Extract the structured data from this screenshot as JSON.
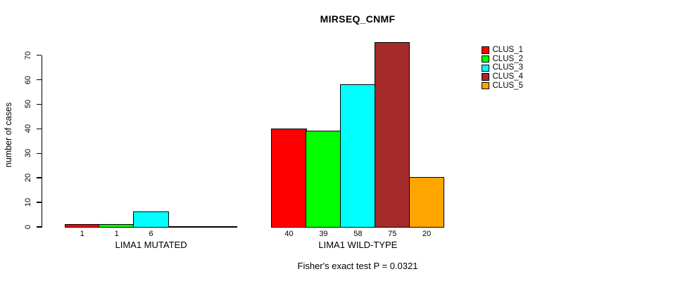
{
  "chart_data": {
    "type": "bar",
    "title": "MIRSEQ_CNMF",
    "ylabel": "number of cases",
    "xlabel": "",
    "subtitle": "Fisher's exact test P = 0.0321",
    "ylim": [
      0,
      70
    ],
    "yticks": [
      0,
      10,
      20,
      30,
      40,
      50,
      60,
      70
    ],
    "grid": "off",
    "legend_position": "right",
    "series": [
      {
        "name": "CLUS_1",
        "color": "#FF0000"
      },
      {
        "name": "CLUS_2",
        "color": "#00FF00"
      },
      {
        "name": "CLUS_3",
        "color": "#00FFFF"
      },
      {
        "name": "CLUS_4",
        "color": "#A52A2A"
      },
      {
        "name": "CLUS_5",
        "color": "#FFA500"
      }
    ],
    "groups": [
      {
        "label": "LIMA1 MUTATED",
        "values": [
          1,
          1,
          6,
          0,
          0
        ]
      },
      {
        "label": "LIMA1 WILD-TYPE",
        "values": [
          40,
          39,
          58,
          75,
          20
        ]
      }
    ],
    "bar_value_labels_shown": true
  }
}
